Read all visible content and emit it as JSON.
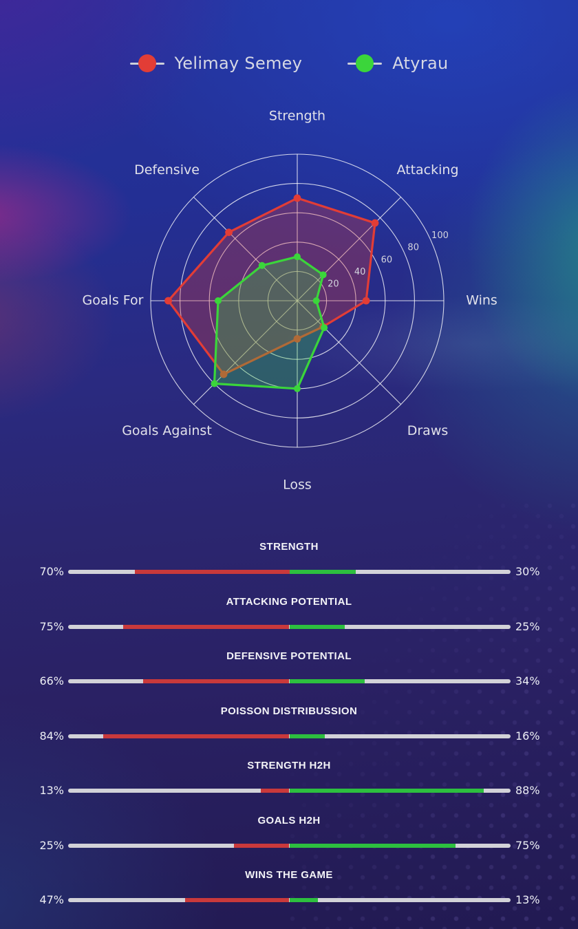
{
  "legend": {
    "entries": [
      {
        "label": "Yelimay Semey",
        "marker": "red-dot"
      },
      {
        "label": "Atyrau",
        "marker": "green-dot"
      }
    ]
  },
  "chart_data": [
    {
      "type": "radar",
      "title": "",
      "categories": [
        "Strength",
        "Attacking",
        "Wins",
        "Draws",
        "Loss",
        "Goals Against",
        "Goals For",
        "Defensive"
      ],
      "radial_ticks": [
        20,
        40,
        60,
        80,
        100
      ],
      "rlim": [
        0,
        100
      ],
      "grid": true,
      "grid_color": "#ffffff",
      "legend_position": "top",
      "series": [
        {
          "name": "Yelimay Semey",
          "color": "#e23d36",
          "fill_opacity": 0.3,
          "values": [
            70,
            75,
            47,
            25,
            26,
            71,
            88,
            66
          ]
        },
        {
          "name": "Atyrau",
          "color": "#3bd53b",
          "fill_opacity": 0.3,
          "values": [
            30,
            25,
            13,
            26,
            60,
            80,
            54,
            34
          ]
        }
      ]
    },
    {
      "type": "bar",
      "layout": "diverging-from-center",
      "track_color": "#d2d2d8",
      "value_suffix": "%",
      "categories": [
        "STRENGTH",
        "ATTACKING POTENTIAL",
        "DEFENSIVE POTENTIAL",
        "POISSON DISTRIBUSSION",
        "STRENGTH H2H",
        "GOALS H2H",
        "WINS THE GAME"
      ],
      "series": [
        {
          "name": "Yelimay Semey",
          "side": "left",
          "color": "#c9393b",
          "values": [
            70,
            75,
            66,
            84,
            13,
            25,
            47
          ]
        },
        {
          "name": "Atyrau",
          "side": "right",
          "color": "#2dbf3f",
          "values": [
            30,
            25,
            34,
            16,
            88,
            75,
            13
          ]
        }
      ],
      "display_left": [
        "70%",
        "75%",
        "66%",
        "84%",
        "13%",
        "25%",
        "47%"
      ],
      "display_right": [
        "30%",
        "25%",
        "34%",
        "16%",
        "88%",
        "75%",
        "13%"
      ]
    }
  ]
}
